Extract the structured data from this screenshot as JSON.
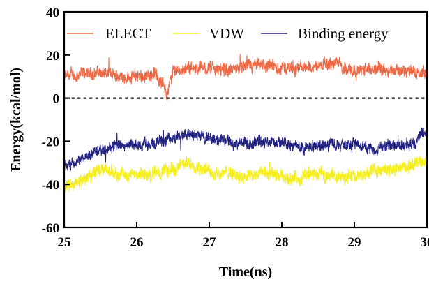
{
  "chart_data": {
    "type": "line",
    "title": "",
    "xlabel": "Time(ns)",
    "ylabel": "Energy(kcal/mol)",
    "xlim": [
      25,
      30
    ],
    "ylim": [
      -60,
      40
    ],
    "xticks": [
      "25",
      "26",
      "27",
      "28",
      "29",
      "30"
    ],
    "yticks": [
      "40",
      "20",
      "0",
      "-20",
      "-40",
      "-60"
    ],
    "grid": false,
    "legend_position": "top",
    "zero_reference_line": "dotted",
    "series": [
      {
        "name": "ELECT",
        "color": "#ee6a47",
        "x": [
          25.0,
          25.25,
          25.5,
          25.75,
          26.0,
          26.25,
          26.38,
          26.42,
          26.5,
          26.75,
          27.0,
          27.25,
          27.5,
          27.75,
          28.0,
          28.25,
          28.5,
          28.75,
          29.0,
          29.25,
          29.5,
          29.75,
          30.0
        ],
        "values": [
          10,
          11,
          12,
          10,
          10,
          11,
          6,
          1,
          13,
          14,
          14,
          13,
          14,
          15,
          14,
          14,
          15,
          16,
          13,
          13,
          14,
          12,
          11
        ]
      },
      {
        "name": "VDW",
        "color": "#f6ef1f",
        "x": [
          25.0,
          25.25,
          25.5,
          25.75,
          26.0,
          26.25,
          26.5,
          26.75,
          27.0,
          27.25,
          27.5,
          27.75,
          28.0,
          28.25,
          28.5,
          28.75,
          29.0,
          29.25,
          29.5,
          29.75,
          30.0
        ],
        "values": [
          -42,
          -38,
          -33,
          -35,
          -36,
          -35,
          -33,
          -30,
          -34,
          -35,
          -36,
          -35,
          -37,
          -37,
          -35,
          -36,
          -37,
          -34,
          -33,
          -32,
          -28
        ]
      },
      {
        "name": "Binding energy",
        "color": "#232382",
        "x": [
          25.0,
          25.25,
          25.5,
          25.75,
          26.0,
          26.25,
          26.5,
          26.75,
          27.0,
          27.25,
          27.5,
          27.75,
          28.0,
          28.25,
          28.5,
          28.75,
          29.0,
          29.25,
          29.5,
          29.75,
          30.0
        ],
        "values": [
          -32,
          -28,
          -23,
          -22,
          -22,
          -21,
          -19,
          -16,
          -19,
          -20,
          -21,
          -20,
          -21,
          -23,
          -22,
          -21,
          -21,
          -23,
          -22,
          -21,
          -17
        ]
      }
    ]
  }
}
